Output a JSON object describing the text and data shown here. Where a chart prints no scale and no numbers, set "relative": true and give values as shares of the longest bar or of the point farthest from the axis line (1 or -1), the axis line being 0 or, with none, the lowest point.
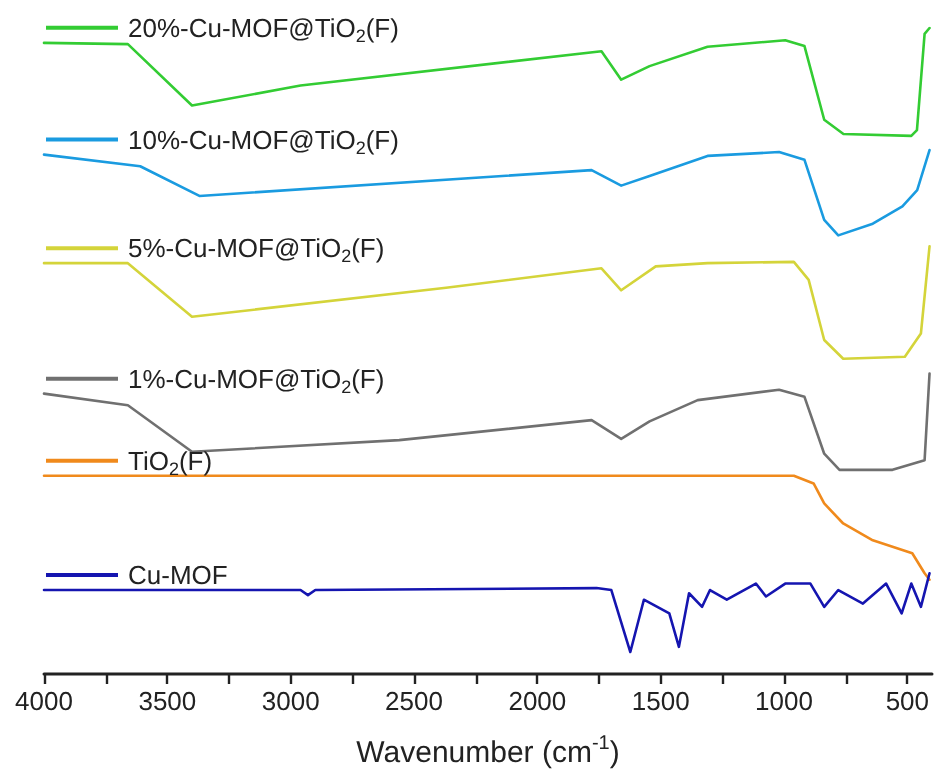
{
  "chart_data": {
    "type": "line",
    "relative": true,
    "xlabel": "Wavenumber (cm$^{-1}$)",
    "xlim": [
      4000,
      400
    ],
    "xticks": [
      4000,
      {
        "value": 3750,
        "label": null
      },
      3500,
      {
        "value": 3250,
        "label": null
      },
      3000,
      {
        "value": 2750,
        "label": null
      },
      2500,
      {
        "value": 2250,
        "label": null
      },
      2000,
      {
        "value": 1750,
        "label": null
      },
      1500,
      {
        "value": 1250,
        "label": null
      },
      1000,
      {
        "value": 750,
        "label": null
      },
      500
    ],
    "grid": false,
    "legend": "left",
    "marker": "none",
    "line_style": "solid",
    "series": [
      {
        "name": "20%-Cu-MOF@TiO$_{2}$(F)",
        "color": "#33cc33",
        "x": [
          4000,
          3660,
          3400,
          2960,
          1740,
          1660,
          1545,
          1310,
          995,
          917,
          837,
          759,
          484,
          461,
          430,
          410
        ],
        "values": [
          0.977,
          0.975,
          0.88,
          0.911,
          0.964,
          0.92,
          0.941,
          0.971,
          0.981,
          0.972,
          0.858,
          0.836,
          0.833,
          0.842,
          0.991,
          1.0
        ]
      },
      {
        "name": "10%-Cu-MOF@TiO$_{2}$(F)",
        "color": "#1a9be0",
        "x": [
          4000,
          3610,
          3370,
          1780,
          1660,
          1545,
          1310,
          1020,
          917,
          837,
          780,
          640,
          520,
          460,
          410
        ],
        "values": [
          0.804,
          0.786,
          0.74,
          0.78,
          0.756,
          0.771,
          0.802,
          0.808,
          0.796,
          0.703,
          0.679,
          0.697,
          0.724,
          0.749,
          0.811
        ]
      },
      {
        "name": "5%-Cu-MOF@TiO$_{2}$(F)",
        "color": "#d4d43a",
        "x": [
          4000,
          3660,
          3400,
          2370,
          1740,
          1660,
          1520,
          1310,
          960,
          900,
          837,
          760,
          510,
          445,
          410
        ],
        "values": [
          0.636,
          0.636,
          0.553,
          0.598,
          0.628,
          0.594,
          0.631,
          0.636,
          0.638,
          0.61,
          0.517,
          0.488,
          0.491,
          0.527,
          0.662
        ]
      },
      {
        "name": "1%-Cu-MOF@TiO$_{2}$(F)",
        "color": "#707070",
        "x": [
          4000,
          3660,
          3400,
          2560,
          1780,
          1660,
          1545,
          1350,
          1020,
          917,
          837,
          775,
          560,
          430,
          410
        ],
        "values": [
          0.434,
          0.416,
          0.344,
          0.362,
          0.393,
          0.364,
          0.391,
          0.424,
          0.44,
          0.429,
          0.341,
          0.316,
          0.316,
          0.331,
          0.465
        ]
      },
      {
        "name": "TiO$_{2}$(F)",
        "color": "#f08a1c",
        "x": [
          4000,
          960,
          880,
          837,
          760,
          640,
          480,
          430,
          410
        ],
        "values": [
          0.307,
          0.307,
          0.295,
          0.264,
          0.233,
          0.207,
          0.187,
          0.156,
          0.146
        ]
      },
      {
        "name": "Cu-MOF",
        "color": "#1515b0",
        "x": [
          4000,
          2960,
          2930,
          2900,
          1760,
          1700,
          1623,
          1568,
          1465,
          1426,
          1385,
          1332,
          1300,
          1232,
          1114,
          1073,
          995,
          893,
          837,
          780,
          680,
          586,
          523,
          484,
          445,
          410
        ],
        "values": [
          0.13,
          0.13,
          0.122,
          0.13,
          0.133,
          0.13,
          0.034,
          0.115,
          0.094,
          0.042,
          0.125,
          0.104,
          0.13,
          0.115,
          0.14,
          0.12,
          0.14,
          0.14,
          0.104,
          0.13,
          0.109,
          0.14,
          0.094,
          0.14,
          0.104,
          0.156
        ]
      }
    ]
  }
}
